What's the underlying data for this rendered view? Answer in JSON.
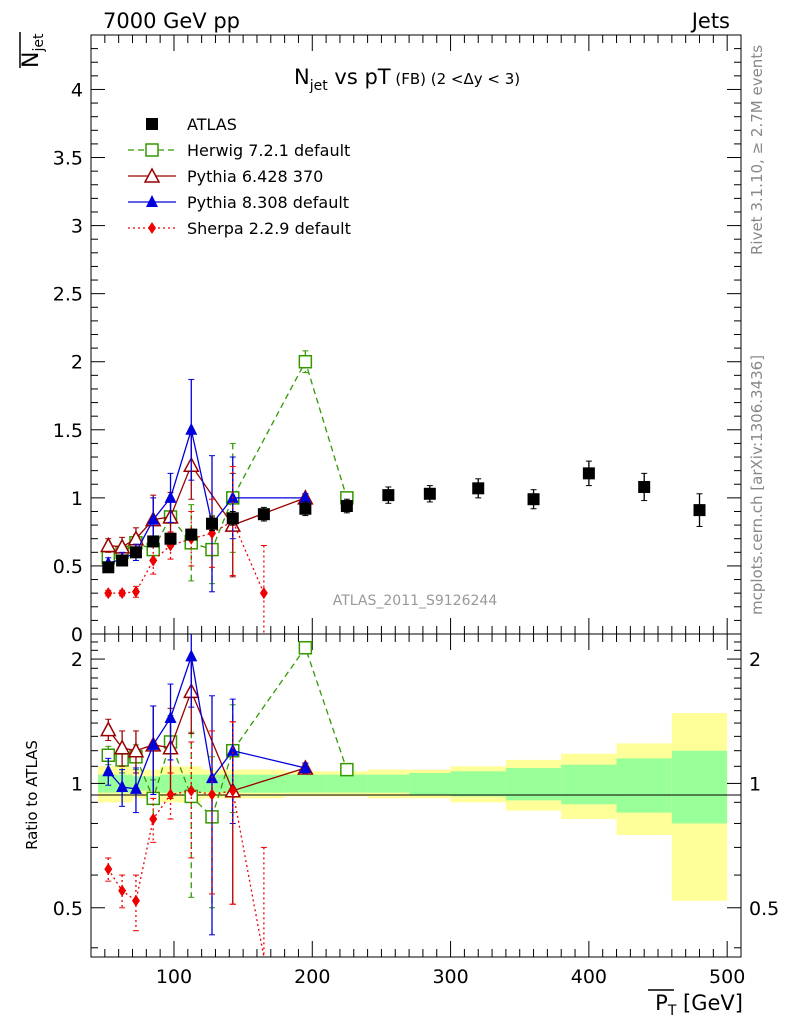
{
  "header": {
    "left": "7000 GeV pp",
    "right": "Jets"
  },
  "side": {
    "rivet": "Rivet 3.1.10, ≥ 2.7M events",
    "mcplots": "mcplots.cern.ch [arXiv:1306.3436]"
  },
  "top": {
    "title_main": "N",
    "title_sub": "jet",
    "title_tail": " vs pT",
    "title_fb": " (FB)",
    "title_range": " (2 <Δy < 3)",
    "watermark": "ATLAS_2011_S9126244",
    "ylabel_main": "N",
    "ylabel_sub": "jet",
    "yticks": [
      "0",
      "0.5",
      "1",
      "1.5",
      "2",
      "2.5",
      "3",
      "3.5",
      "4"
    ]
  },
  "ratio": {
    "ylabel": "Ratio to ATLAS",
    "yticks": [
      "0.5",
      "1",
      "2"
    ]
  },
  "xaxis": {
    "label": "P",
    "sub": "T",
    "unit": " [GeV]",
    "ticks": [
      "100",
      "200",
      "300",
      "400",
      "500"
    ]
  },
  "colors": {
    "atlas": "#000000",
    "herwig": "#339900",
    "pythia6": "#990000",
    "pythia8": "#0000dd",
    "sherpa": "#ee0000",
    "band_inner": "#99ff99",
    "band_outer": "#ffff99"
  },
  "chart_data": {
    "type": "scatter",
    "x_unit": "GeV",
    "xlim": [
      40,
      510
    ],
    "ylim": [
      0,
      4.4
    ],
    "ratio_ylim": [
      0.38,
      2.3
    ],
    "legend_position": "top-left",
    "series": [
      {
        "name": "ATLAS",
        "key": "atlas",
        "marker": "square-filled",
        "x": [
          52.5,
          62.5,
          72.5,
          85,
          97.5,
          112.5,
          127.5,
          142.5,
          165,
          195,
          225,
          255,
          285,
          320,
          360,
          400,
          440,
          480
        ],
        "y": [
          0.49,
          0.54,
          0.6,
          0.68,
          0.7,
          0.73,
          0.81,
          0.85,
          0.88,
          0.92,
          0.94,
          1.02,
          1.03,
          1.07,
          0.99,
          1.18,
          1.08,
          0.91
        ],
        "err": [
          0.02,
          0.02,
          0.02,
          0.03,
          0.03,
          0.04,
          0.05,
          0.05,
          0.05,
          0.05,
          0.05,
          0.06,
          0.06,
          0.07,
          0.07,
          0.09,
          0.1,
          0.12
        ],
        "ratio": [
          1,
          1,
          1,
          1,
          1,
          1,
          1,
          1,
          1,
          1,
          1,
          1,
          1,
          1,
          1,
          1,
          1,
          1
        ]
      },
      {
        "name": "Herwig 7.2.1 default",
        "key": "herwig",
        "marker": "square-open",
        "dash": "6,4",
        "x": [
          52.5,
          62.5,
          72.5,
          85,
          97.5,
          112.5,
          127.5,
          142.5,
          195,
          225
        ],
        "y": [
          0.56,
          0.6,
          0.67,
          0.62,
          0.86,
          0.67,
          0.62,
          1.0,
          2.0,
          1.0
        ],
        "err": [
          0.04,
          0.05,
          0.06,
          0.08,
          0.12,
          0.28,
          0.25,
          0.4,
          0.08,
          0.03
        ],
        "ratio": [
          1.17,
          1.14,
          1.16,
          0.92,
          1.26,
          0.93,
          0.83,
          1.2,
          2.13,
          1.08
        ],
        "ratio_err": [
          0.06,
          0.08,
          0.08,
          0.1,
          0.2,
          0.4,
          0.33,
          0.35,
          0.05,
          0.03
        ]
      },
      {
        "name": "Pythia 6.428 370",
        "key": "pythia6",
        "marker": "triangle-open",
        "x": [
          52.5,
          62.5,
          72.5,
          85,
          97.5,
          112.5,
          142.5,
          195
        ],
        "y": [
          0.65,
          0.64,
          0.7,
          0.84,
          0.86,
          1.24,
          0.8,
          1.0
        ],
        "err": [
          0.05,
          0.07,
          0.08,
          0.18,
          0.18,
          0.25,
          0.38,
          0.03
        ],
        "ratio": [
          1.35,
          1.22,
          1.2,
          1.24,
          1.22,
          1.67,
          0.96,
          1.09
        ],
        "ratio_err": [
          0.08,
          0.12,
          0.14,
          0.3,
          0.3,
          0.35,
          0.45,
          0.03
        ]
      },
      {
        "name": "Pythia 8.308 default",
        "key": "pythia8",
        "marker": "triangle-filled",
        "x": [
          52.5,
          62.5,
          72.5,
          85,
          97.5,
          112.5,
          127.5,
          142.5,
          195
        ],
        "y": [
          0.52,
          0.55,
          0.6,
          0.84,
          1.0,
          1.5,
          0.81,
          1.0,
          1.0
        ],
        "err": [
          0.04,
          0.05,
          0.06,
          0.16,
          0.18,
          0.37,
          0.5,
          0.3,
          0.03
        ],
        "ratio": [
          1.07,
          0.98,
          0.97,
          1.24,
          1.44,
          2.03,
          1.03,
          1.2,
          1.09
        ],
        "ratio_err": [
          0.08,
          0.1,
          0.12,
          0.3,
          0.3,
          0.5,
          0.6,
          0.4,
          0.03
        ]
      },
      {
        "name": "Sherpa 2.2.9 default",
        "key": "sherpa",
        "marker": "diamond-filled",
        "dash": "2,3",
        "x": [
          52.5,
          62.5,
          72.5,
          85,
          97.5,
          112.5,
          127.5,
          142.5,
          165
        ],
        "y": [
          0.3,
          0.3,
          0.31,
          0.54,
          0.65,
          0.7,
          0.74,
          0.83,
          0.3
        ],
        "err": [
          0.02,
          0.02,
          0.04,
          0.1,
          0.1,
          0.2,
          0.25,
          0.4,
          0.35
        ],
        "ratio": [
          0.62,
          0.55,
          0.52,
          0.82,
          0.94,
          0.96,
          0.94,
          0.96,
          0.3
        ],
        "ratio_err": [
          0.04,
          0.05,
          0.08,
          0.1,
          0.12,
          0.3,
          0.4,
          0.45,
          0.4
        ]
      }
    ],
    "band": {
      "edges": [
        45,
        60,
        70,
        80,
        90,
        100,
        110,
        120,
        130,
        140,
        150,
        180,
        210,
        240,
        270,
        300,
        340,
        380,
        420,
        460,
        500
      ],
      "inner": [
        0.05,
        0.05,
        0.04,
        0.04,
        0.05,
        0.05,
        0.05,
        0.05,
        0.05,
        0.05,
        0.05,
        0.05,
        0.05,
        0.05,
        0.06,
        0.07,
        0.09,
        0.11,
        0.15,
        0.2
      ],
      "outer": [
        0.1,
        0.1,
        0.08,
        0.08,
        0.1,
        0.1,
        0.1,
        0.08,
        0.08,
        0.08,
        0.08,
        0.07,
        0.07,
        0.08,
        0.08,
        0.1,
        0.14,
        0.18,
        0.25,
        0.48
      ]
    }
  }
}
